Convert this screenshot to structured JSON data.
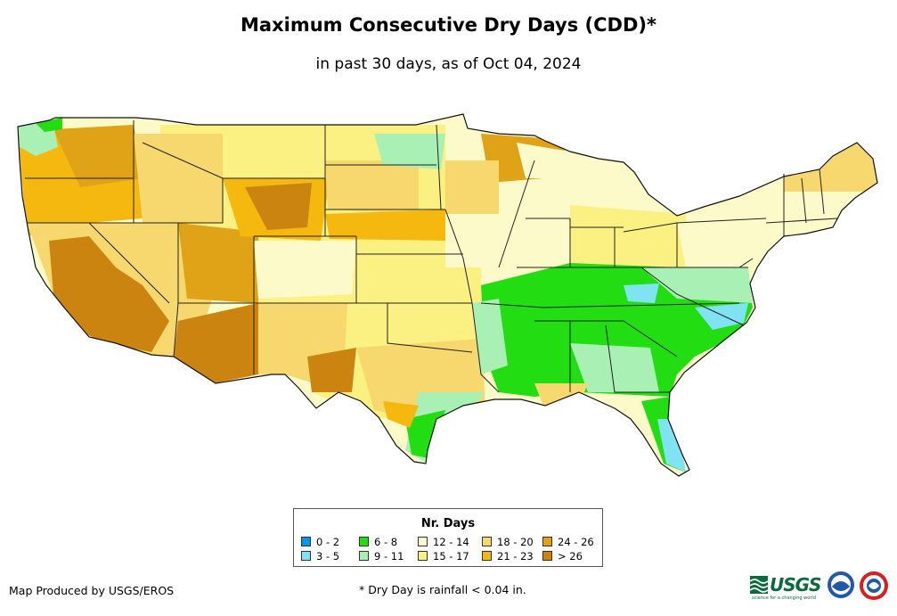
{
  "title": "Maximum Consecutive Dry Days (CDD)*",
  "subtitle": "in past 30 days, as of Oct 04, 2024",
  "legend": {
    "title": "Nr. Days",
    "items": [
      {
        "label": "0 - 2",
        "color": "#0096e6"
      },
      {
        "label": "3 - 5",
        "color": "#7fe3f2"
      },
      {
        "label": "6 - 8",
        "color": "#22dd11"
      },
      {
        "label": "9 - 11",
        "color": "#a8f0b4"
      },
      {
        "label": "12 - 14",
        "color": "#fbfac8"
      },
      {
        "label": "15 - 17",
        "color": "#fbf183"
      },
      {
        "label": "18 - 20",
        "color": "#f7d86e"
      },
      {
        "label": "21 - 23",
        "color": "#f5b80f"
      },
      {
        "label": "24 - 26",
        "color": "#e0a216"
      },
      {
        "label": "> 26",
        "color": "#cc8410"
      }
    ]
  },
  "credit": "Map Produced by USGS/EROS",
  "footnote": "* Dry Day is rainfall < 0.04 in.",
  "logos": {
    "usgs": "USGS",
    "usgs_tagline": "science for a changing world",
    "noaa": "noaa-logo",
    "nws": "nws-logo"
  },
  "colors": {
    "state_border": "#222222",
    "outline": "#111111"
  }
}
